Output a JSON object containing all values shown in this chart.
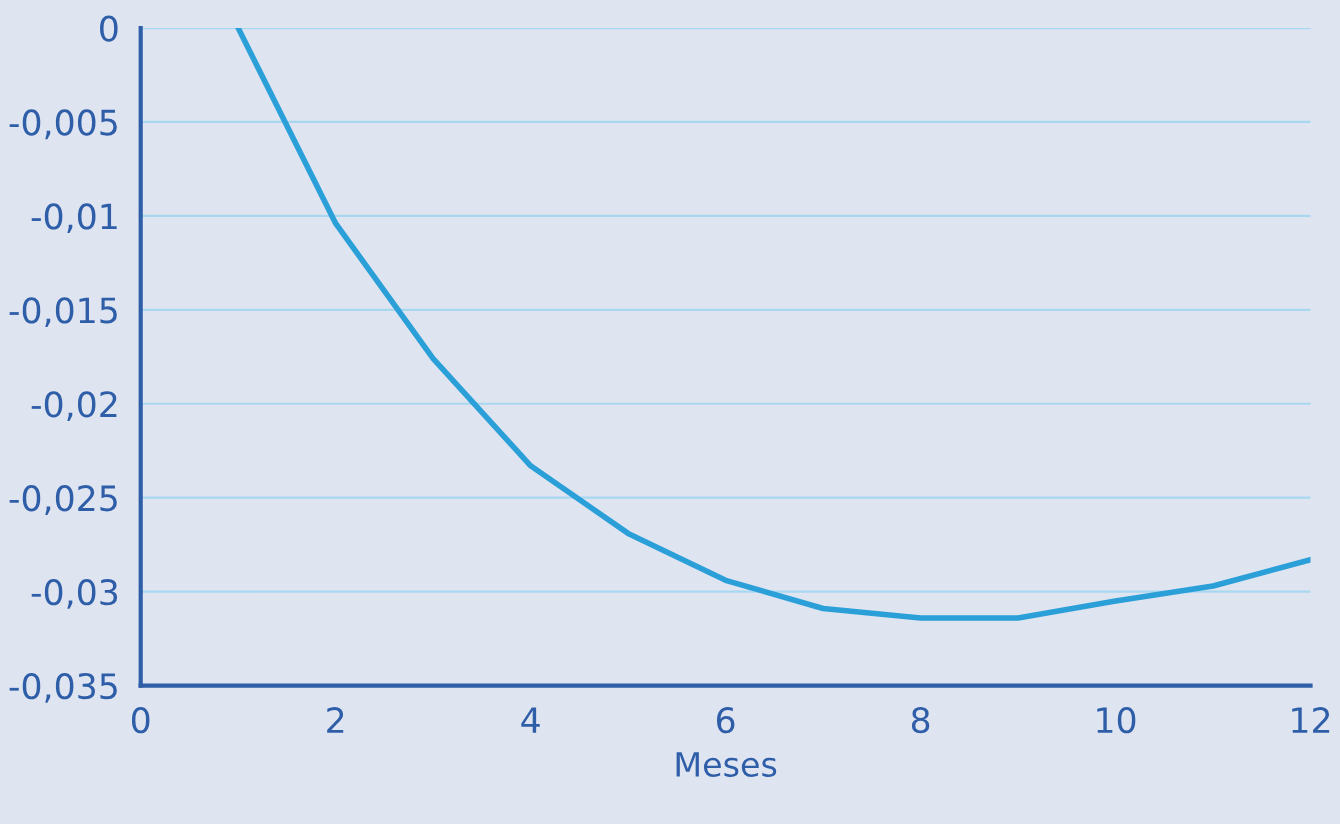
{
  "chart_data": {
    "type": "line",
    "xlabel": "Meses",
    "x": [
      1,
      2,
      3,
      4,
      5,
      6,
      7,
      8,
      9,
      10,
      11,
      12
    ],
    "series": [
      {
        "color": "#2a9fd8",
        "values": [
          0,
          -0.0104,
          -0.0176,
          -0.0233,
          -0.0269,
          -0.0294,
          -0.0309,
          -0.0314,
          -0.0314,
          -0.0305,
          -0.0297,
          -0.0283
        ]
      }
    ],
    "xlim": [
      0,
      12
    ],
    "xticks": [
      0,
      2,
      4,
      6,
      8,
      10,
      12
    ],
    "ylim": [
      -0.035,
      0
    ],
    "yticks": [
      {
        "value": 0,
        "label": "0"
      },
      {
        "value": -0.005,
        "label": "-0,005"
      },
      {
        "value": -0.01,
        "label": "-0,01"
      },
      {
        "value": -0.015,
        "label": "-0,015"
      },
      {
        "value": -0.02,
        "label": "-0,02"
      },
      {
        "value": -0.025,
        "label": "-0,025"
      },
      {
        "value": -0.03,
        "label": "-0,03"
      },
      {
        "value": -0.035,
        "label": "-0,035"
      }
    ],
    "grid": "y",
    "marker": "none",
    "line_style": "solid"
  }
}
